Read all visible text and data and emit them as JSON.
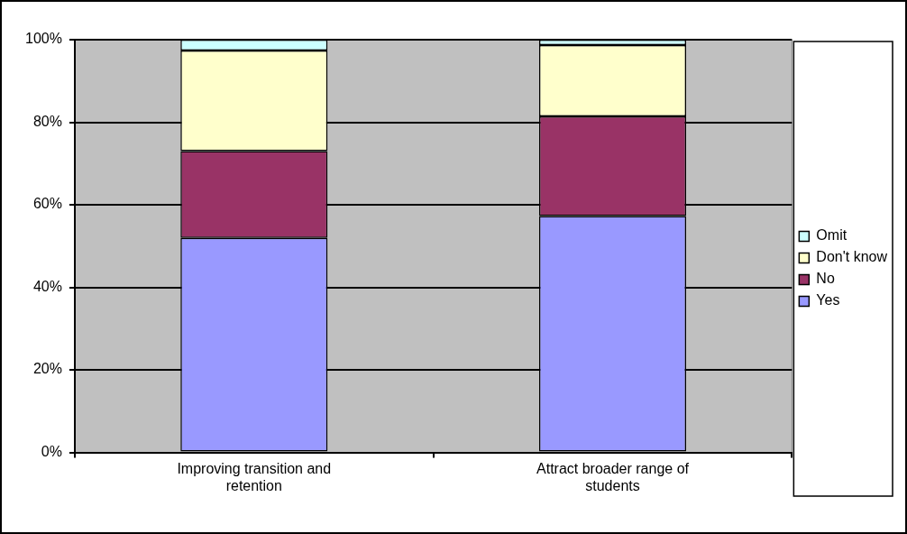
{
  "chart_data": {
    "type": "bar",
    "stacked": true,
    "categories": [
      "Improving transition and retention",
      "Attract broader range of students"
    ],
    "series": [
      {
        "name": "Yes",
        "color": "#9999ff",
        "values": [
          52,
          57.3
        ]
      },
      {
        "name": "No",
        "color": "#993366",
        "values": [
          21,
          24.1
        ]
      },
      {
        "name": "Don't know",
        "color": "#ffffcc",
        "values": [
          24.4,
          17.3
        ]
      },
      {
        "name": "Omit",
        "color": "#ccffff",
        "values": [
          2.6,
          1.3
        ]
      }
    ],
    "ylim": [
      0,
      100
    ],
    "yticks": [
      {
        "value": 0,
        "label": "0%"
      },
      {
        "value": 20,
        "label": "20%"
      },
      {
        "value": 40,
        "label": "40%"
      },
      {
        "value": 60,
        "label": "60%"
      },
      {
        "value": 80,
        "label": "80%"
      },
      {
        "value": 100,
        "label": "100%"
      }
    ],
    "grid": "y",
    "legend": "right"
  }
}
